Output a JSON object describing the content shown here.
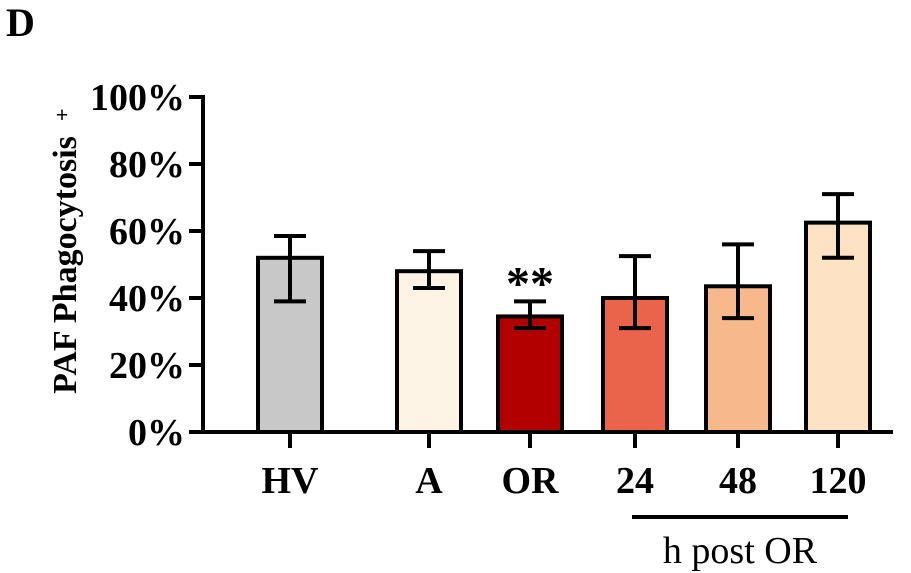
{
  "panel_label": "D",
  "chart_data": {
    "type": "bar",
    "ylabel": "PAF Phagocytosis",
    "ylabel_superscript": "+",
    "ylim": [
      0,
      100
    ],
    "ytick_values": [
      0,
      20,
      40,
      60,
      80,
      100
    ],
    "ytick_labels": [
      "0%",
      "20%",
      "40%",
      "60%",
      "80%",
      "100%"
    ],
    "categories": [
      "HV",
      "A",
      "OR",
      "24",
      "48",
      "120"
    ],
    "values": [
      52,
      48,
      34.5,
      40,
      43.5,
      62.5
    ],
    "error_low": [
      39,
      43,
      31,
      31,
      34,
      52
    ],
    "error_high": [
      58.5,
      54,
      39,
      52.5,
      56,
      71
    ],
    "colors": [
      "#c8c8c8",
      "#fdf4e6",
      "#b20000",
      "#e9644a",
      "#f7b98c",
      "#fde3c3"
    ],
    "annotations": [
      {
        "category": "OR",
        "text": "**"
      }
    ],
    "group_bracket": {
      "categories": [
        "24",
        "48",
        "120"
      ],
      "label": "h post OR"
    },
    "grid": false,
    "legend": "none"
  }
}
